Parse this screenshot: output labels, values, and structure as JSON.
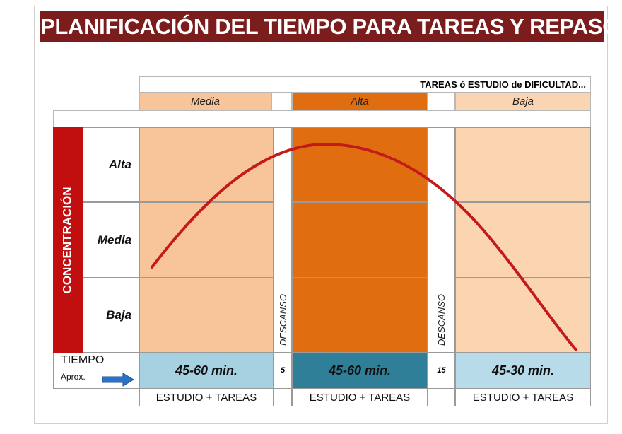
{
  "title": "PLANIFICACIÓN DEL TIEMPO PARA TAREAS Y REPASOS",
  "header_top": "TAREAS ó ESTUDIO de DIFICULTAD...",
  "columns": [
    {
      "difficulty": "Media",
      "time": "45-60 min.",
      "activity": "ESTUDIO + TAREAS",
      "header_color": "#f8c49a",
      "body_color": "#f8c49a",
      "time_color": "#a6d1e0"
    },
    {
      "difficulty": "Alta",
      "time": "45-60 min.",
      "activity": "ESTUDIO + TAREAS",
      "header_color": "#e06d10",
      "body_color": "#e06d10",
      "time_color": "#2f7f98"
    },
    {
      "difficulty": "Baja",
      "time": "45-30 min.",
      "activity": "ESTUDIO + TAREAS",
      "header_color": "#fbd4b2",
      "body_color": "#fbd4b2",
      "time_color": "#b7dbe8"
    }
  ],
  "breaks": [
    {
      "label": "DESCANSO",
      "minutes": "5"
    },
    {
      "label": "DESCANSO",
      "minutes": "15"
    }
  ],
  "y_axis": {
    "label": "CONCENTRACIÓN",
    "levels": [
      "Alta",
      "Media",
      "Baja"
    ],
    "color": "#c10f0f"
  },
  "time_label": {
    "main": "TIEMPO",
    "sub": "Aprox."
  },
  "curve_color": "#c41a1a",
  "arrow_color": "#2a73c8"
}
